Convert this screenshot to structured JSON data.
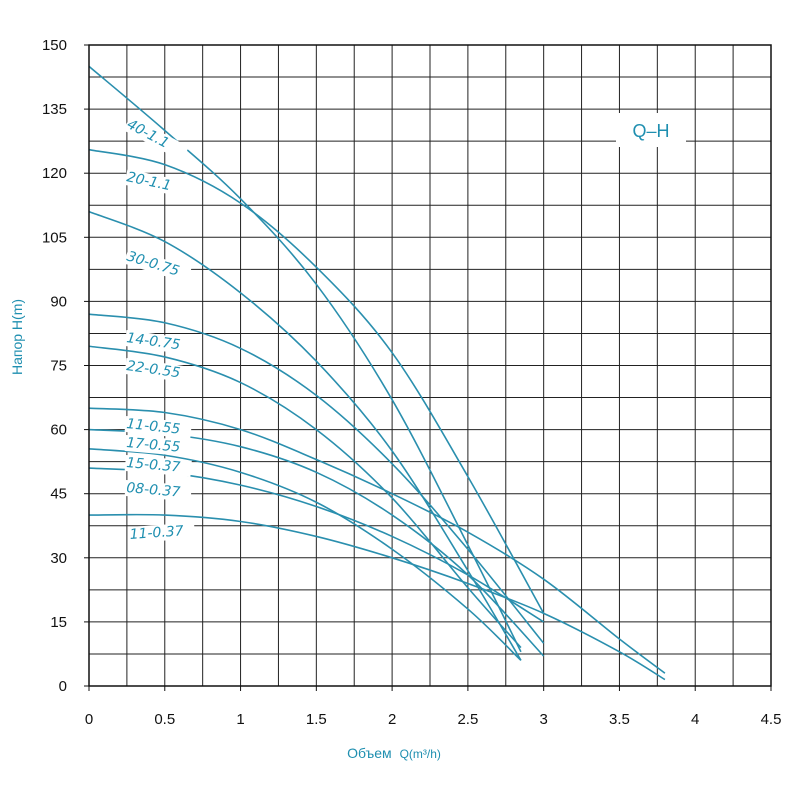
{
  "chart_data": {
    "type": "line",
    "title": "Q–H",
    "xlabel_main": "Объем",
    "xlabel_unit": "Q(m³/h)",
    "ylabel": "Напор H(m)",
    "xlim": [
      0,
      4.5
    ],
    "ylim": [
      0,
      150
    ],
    "x_ticks": [
      "0",
      "0.5",
      "1",
      "1.5",
      "2",
      "2.5",
      "3",
      "3.5",
      "4",
      "4.5"
    ],
    "y_ticks": [
      "0",
      "15",
      "30",
      "45",
      "60",
      "75",
      "90",
      "105",
      "120",
      "135",
      "150"
    ],
    "grid": true,
    "curve_color": "#2a8fae",
    "label_color": "#1f8fb0",
    "series": [
      {
        "name": "40-1.1",
        "x": [
          0,
          0.5,
          1.0,
          1.5,
          2.0,
          2.5,
          2.85
        ],
        "y": [
          145,
          130,
          114,
          94,
          67,
          33,
          8
        ]
      },
      {
        "name": "20-1.1",
        "x": [
          0,
          0.5,
          1.0,
          1.5,
          2.0,
          2.5,
          3.0
        ],
        "y": [
          125.5,
          122,
          113,
          98,
          78,
          49,
          17
        ]
      },
      {
        "name": "30-0.75",
        "x": [
          0,
          0.5,
          1.0,
          1.5,
          2.0,
          2.5,
          2.85
        ],
        "y": [
          111,
          104,
          92,
          76,
          55,
          27,
          6
        ]
      },
      {
        "name": "14-0.75",
        "x": [
          0,
          0.5,
          1.0,
          1.5,
          2.0,
          2.5,
          3.0
        ],
        "y": [
          87,
          85,
          79,
          68,
          52,
          32,
          10
        ]
      },
      {
        "name": "22-0.55",
        "x": [
          0,
          0.5,
          1.0,
          1.5,
          2.0,
          2.5,
          2.85
        ],
        "y": [
          79.5,
          77,
          71,
          60,
          44,
          23,
          9
        ]
      },
      {
        "name": "11-0.55",
        "x": [
          0,
          0.5,
          1.0,
          1.5,
          2.0,
          2.5,
          3.0,
          3.5,
          3.8
        ],
        "y": [
          65,
          64,
          60,
          53,
          45,
          36,
          25,
          11,
          3
        ]
      },
      {
        "name": "17-0.55",
        "x": [
          0,
          0.5,
          1.0,
          1.5,
          2.0,
          2.5,
          3.0
        ],
        "y": [
          60,
          59,
          56,
          50,
          40,
          26,
          7
        ]
      },
      {
        "name": "15-0.37",
        "x": [
          0,
          0.5,
          1.0,
          1.5,
          2.0,
          2.5,
          2.85
        ],
        "y": [
          55.5,
          54,
          50,
          43,
          32,
          18,
          6
        ]
      },
      {
        "name": "08-0.37",
        "x": [
          0,
          0.5,
          1.0,
          1.5,
          2.0,
          2.5,
          3.0
        ],
        "y": [
          51,
          50,
          47,
          42,
          35,
          26,
          15
        ]
      },
      {
        "name": "11-0.37",
        "x": [
          0,
          0.5,
          1.0,
          1.5,
          2.0,
          2.5,
          3.0,
          3.5,
          3.8
        ],
        "y": [
          40,
          40,
          38.5,
          35,
          30,
          24,
          17,
          8,
          1.5
        ]
      }
    ]
  }
}
